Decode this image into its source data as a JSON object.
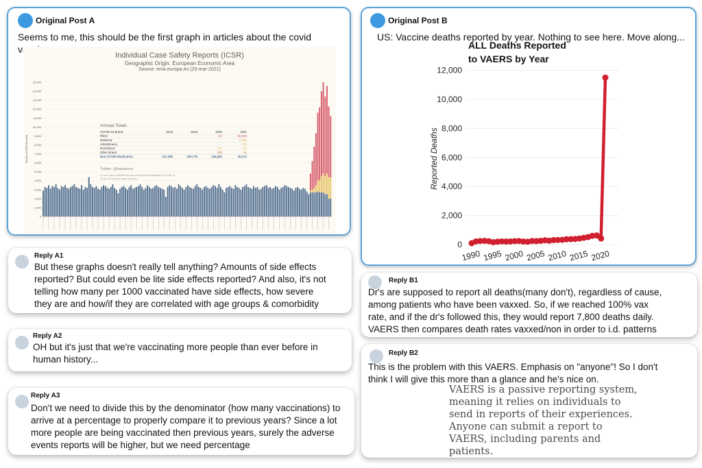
{
  "post_a": {
    "author": "Original Post A",
    "text": "Seems to me, this should be the first graph in articles about the covid vaccines."
  },
  "post_b": {
    "author": "Original Post B",
    "text": "US: Vaccine deaths reported by year. Nothing to see here. Move along..."
  },
  "replies": {
    "a1": {
      "author": "Reply A1",
      "lines": [
        "But these graphs doesn't really tell anything? Amounts of side effects",
        "reported? But could even be lite side effects reported? And also, it's not",
        "telling how many per 1000 vaccinated have side effects, how severe",
        "they are and how/if they are correlated with age groups & comorbidity"
      ]
    },
    "a2": {
      "author": "Reply A2",
      "lines": [
        "OH but it's just that we're vaccinating more people than ever before in",
        "human history..."
      ]
    },
    "a3": {
      "author": "Reply A3",
      "lines": [
        "Don't we need to divide this by the denominator (how many vaccinations) to",
        "arrive at a percentage to properly compare it to previous years? Since a lot",
        "more people are being vaccinated then previous years, surely the adverse",
        "events reports will be higher, but we need percentage"
      ]
    },
    "b1": {
      "author": "Reply B1",
      "lines": [
        "Dr's are supposed to report all deaths(many don't), regardless of cause,",
        "among patients who have been vaxxed. So, if we reached 100% vax",
        "rate, and if the dr's followed this, they would report 7,800 deaths daily.",
        "VAERS then compares death rates vaxxed/non in order to i.d. patterns"
      ]
    },
    "b2": {
      "author": "Reply B2",
      "lines": [
        "This is the problem with this VAERS. Emphasis on \"anyone\"!  So I don't",
        "think I will give this more than a glance and he's nice on."
      ],
      "quote_lines": [
        "VAERS is a passive reporting system,",
        "meaning it relies on individuals to",
        "send in reports of their experiences.",
        "Anyone can submit a report to",
        "VAERS, including parents and",
        "patients."
      ]
    }
  },
  "chart_data": [
    {
      "type": "bar",
      "title": "Individual Case Safety Reports (ICSR)",
      "subtitle": "Geographic Origin: European Economic Area",
      "source": "Source: ema.europa.eu (29-mar-2021)",
      "ylabel": "Number of ICSR Received",
      "ylim": [
        0,
        15000
      ],
      "yticks": [
        0,
        1000,
        2000,
        3000,
        4000,
        5000,
        6000,
        7000,
        8000,
        9000,
        10000,
        11000,
        12000,
        13000,
        14000,
        15000
      ],
      "ytick_labels": [
        "0",
        "1,000",
        "2,000",
        "3,000",
        "4,000",
        "5,000",
        "6,000",
        "7,000",
        "8,000",
        "9,000",
        "10,000",
        "11,000",
        "12,000",
        "13,000",
        "14,000",
        "15,000"
      ],
      "series": [
        {
          "name": "Non-COVID Medication",
          "color": "#4f6d8f"
        },
        {
          "name": "Pfizer",
          "color": "#d65a6a"
        },
        {
          "name": "AstraZeneca",
          "color": "#e8c46a"
        }
      ],
      "baseline_weekly": [
        2900,
        3300,
        3200,
        3500,
        3100,
        3400,
        3300,
        3600,
        3200,
        3000,
        3400,
        3300,
        3500,
        3200,
        3100,
        3300,
        3400,
        3600,
        3300,
        3200,
        3100,
        3500,
        3000,
        3300,
        3200,
        4400,
        3600,
        3300,
        3200,
        3400,
        3100,
        3000,
        3300,
        3500,
        3400,
        3200,
        3100,
        3300,
        3600,
        3200,
        3000,
        2600,
        3100,
        3300,
        3400,
        3200,
        3000,
        3300,
        3500,
        3100,
        3200,
        3300,
        3400,
        3600,
        3300,
        3000,
        3200,
        3500,
        3300,
        3100,
        3200,
        3400,
        3500,
        3300,
        3200,
        3100,
        3000,
        2200,
        3300,
        3500,
        3400,
        3200,
        3300,
        3100,
        3600,
        3400,
        3200,
        3000,
        3300,
        3500,
        3300,
        3200,
        3100,
        3400,
        3600,
        3300,
        3200,
        3000,
        3300,
        3400,
        3200,
        3100,
        3300,
        3500,
        3400,
        3200,
        3600,
        3300,
        3000,
        2700,
        3200,
        3300,
        3400,
        3200,
        3100,
        3500,
        3300,
        3200,
        3000,
        3300,
        3400,
        3600,
        3300,
        3200,
        3100,
        3400,
        3200,
        3300,
        3000,
        3100,
        3300,
        3400,
        3500,
        3200,
        3300,
        3100,
        3200,
        3400,
        3300,
        3000,
        3200,
        3300,
        3500,
        3400,
        3300,
        3200,
        3100,
        2900,
        3200,
        3300,
        3100,
        3000,
        3200,
        3100,
        2800,
        2500
      ],
      "covid_weekly": [
        {
          "total": 4800,
          "pfizer": 1900,
          "astrazeneca": 200
        },
        {
          "total": 6200,
          "pfizer": 3200,
          "astrazeneca": 300
        },
        {
          "total": 7800,
          "pfizer": 4600,
          "astrazeneca": 500
        },
        {
          "total": 9300,
          "pfizer": 5800,
          "astrazeneca": 800
        },
        {
          "total": 11600,
          "pfizer": 7600,
          "astrazeneca": 1200
        },
        {
          "total": 12200,
          "pfizer": 8100,
          "astrazeneca": 1400
        },
        {
          "total": 14000,
          "pfizer": 9500,
          "astrazeneca": 1800
        },
        {
          "total": 15000,
          "pfizer": 10200,
          "astrazeneca": 2100
        },
        {
          "total": 13400,
          "pfizer": 8900,
          "astrazeneca": 2000
        },
        {
          "total": 14600,
          "pfizer": 9800,
          "astrazeneca": 2300
        },
        {
          "total": 12300,
          "pfizer": 7900,
          "astrazeneca": 2400
        },
        {
          "total": 11200,
          "pfizer": 6800,
          "astrazeneca": 2400
        }
      ],
      "annual_totals": {
        "title": "Annual Totals",
        "columns": [
          "COVID-19 Brand",
          "2018",
          "2019",
          "2020",
          "2021"
        ],
        "rows": [
          [
            "Pfizer",
            "",
            "",
            "84",
            "96,056"
          ],
          [
            "Moderna",
            "",
            "",
            "",
            "5,769"
          ],
          [
            "AstraZeneca",
            "",
            "",
            "",
            "713"
          ],
          [
            "Remdesivir",
            "",
            "",
            "240",
            "163"
          ],
          [
            "Other Brand",
            "",
            "",
            "335",
            "41"
          ],
          [
            "Non-COVID Medication",
            "147,398",
            "150,776",
            "126,500",
            "26,274"
          ]
        ]
      },
      "twitter": "Twitter: @waukema",
      "note": [
        "31-mar: fixed 2 AstraZeneca records that were classified as COVID-19",
        "26-apr: AZ records shown properly"
      ]
    },
    {
      "type": "line",
      "title": "ALL Deaths Reported to VAERS by Year",
      "ylabel": "Reported Deaths",
      "color": "#d0202f",
      "ylim": [
        0,
        12500
      ],
      "xlim": [
        1990,
        2021
      ],
      "yticks": [
        0,
        2000,
        4000,
        6000,
        8000,
        10000,
        12000
      ],
      "ytick_labels": [
        "0",
        "2,000",
        "4,000",
        "6,000",
        "8,000",
        "10,000",
        "12,000"
      ],
      "xticks": [
        1990,
        1995,
        2000,
        2005,
        2010,
        2015,
        2020
      ],
      "x": [
        1990,
        1991,
        1992,
        1993,
        1994,
        1995,
        1996,
        1997,
        1998,
        1999,
        2000,
        2001,
        2002,
        2003,
        2004,
        2005,
        2006,
        2007,
        2008,
        2009,
        2010,
        2011,
        2012,
        2013,
        2014,
        2015,
        2016,
        2017,
        2018,
        2019,
        2020,
        2021
      ],
      "y": [
        100,
        220,
        250,
        260,
        230,
        170,
        200,
        220,
        210,
        220,
        240,
        250,
        210,
        200,
        250,
        240,
        260,
        300,
        270,
        310,
        320,
        330,
        370,
        380,
        390,
        420,
        470,
        520,
        610,
        630,
        420,
        11500
      ]
    }
  ]
}
